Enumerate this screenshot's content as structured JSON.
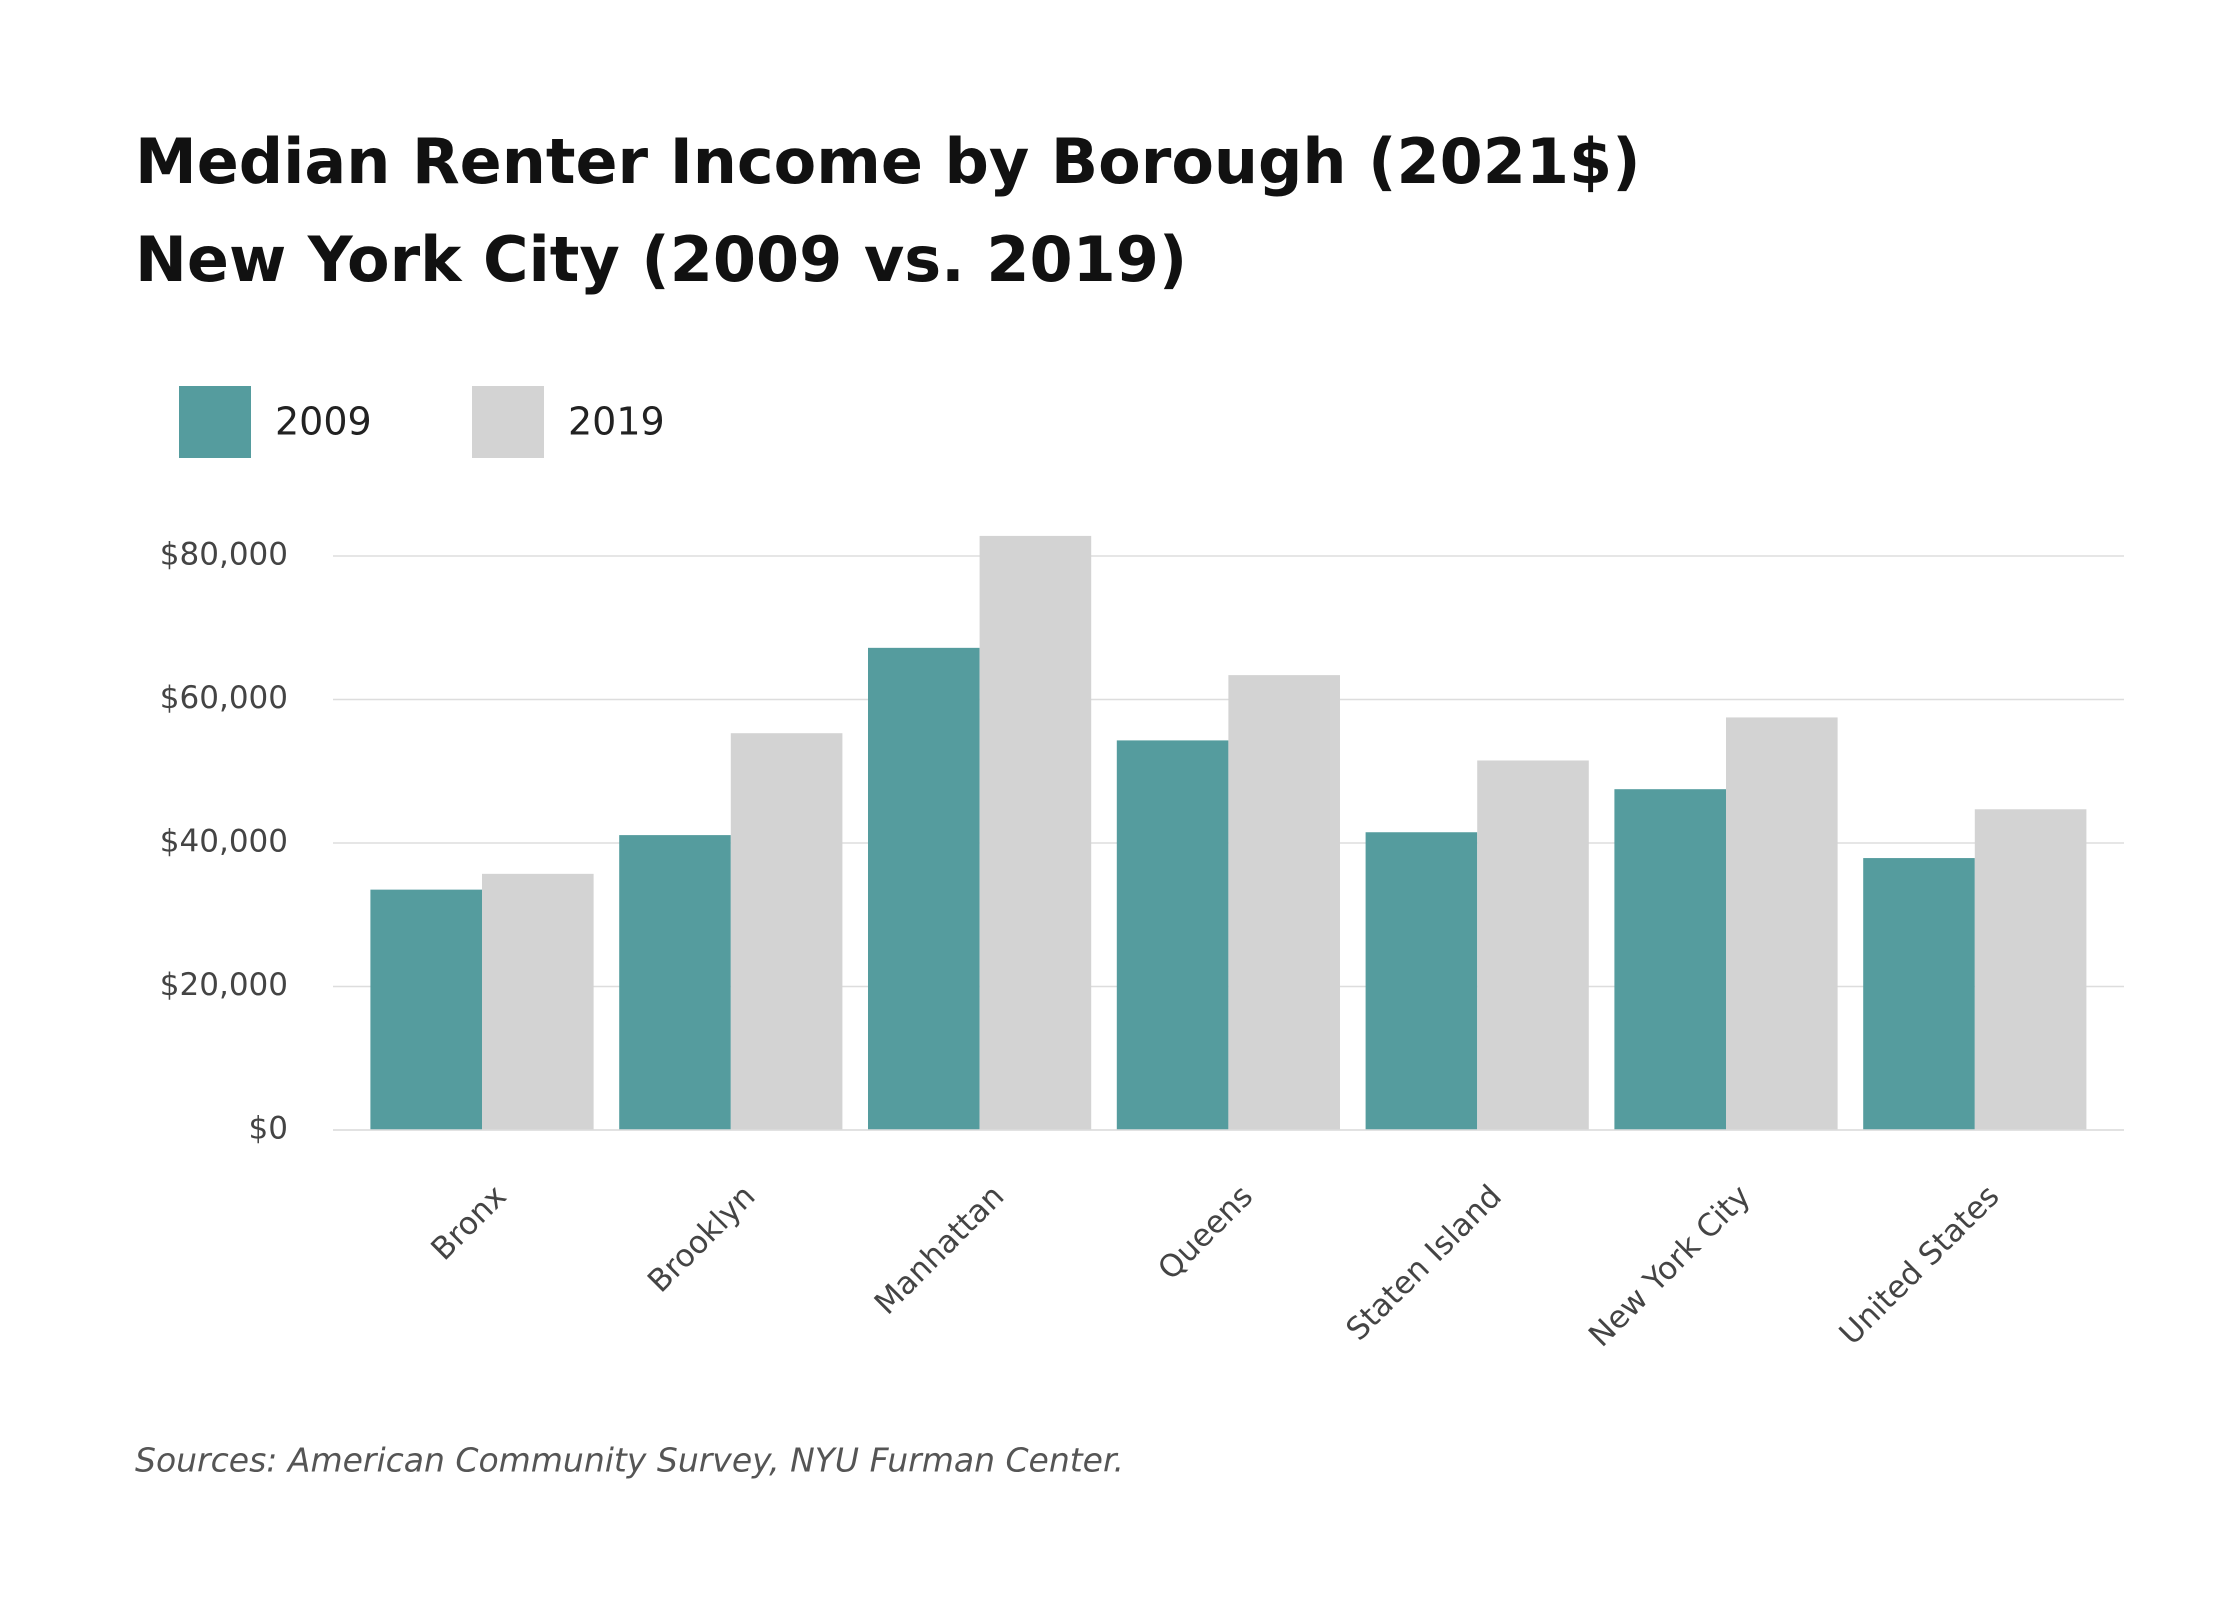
{
  "chart_data": {
    "type": "bar",
    "title": "Median Renter Income by Borough (2021$)",
    "subtitle": "New York City (2009 vs. 2019)",
    "source": "Sources: American Community Survey, NYU Furman Center.",
    "categories": [
      "Bronx",
      "Brooklyn",
      "Manhattan",
      "Queens",
      "Staten Island",
      "New York City",
      "United States"
    ],
    "series": [
      {
        "name": "2009",
        "color": "#559c9e",
        "values": [
          33500,
          41100,
          67200,
          54300,
          41500,
          47500,
          37900
        ]
      },
      {
        "name": "2019",
        "color": "#d3d3d3",
        "values": [
          35700,
          55300,
          82800,
          63400,
          51500,
          57500,
          44700
        ]
      }
    ],
    "ylim": [
      0,
      84000
    ],
    "yticks": [
      {
        "value": 0,
        "label": "$0"
      },
      {
        "value": 20000,
        "label": "$20,000"
      },
      {
        "value": 40000,
        "label": "$40,000"
      },
      {
        "value": 60000,
        "label": "$60,000"
      },
      {
        "value": 80000,
        "label": "$80,000"
      }
    ],
    "grid": true,
    "legend": "top-left"
  }
}
